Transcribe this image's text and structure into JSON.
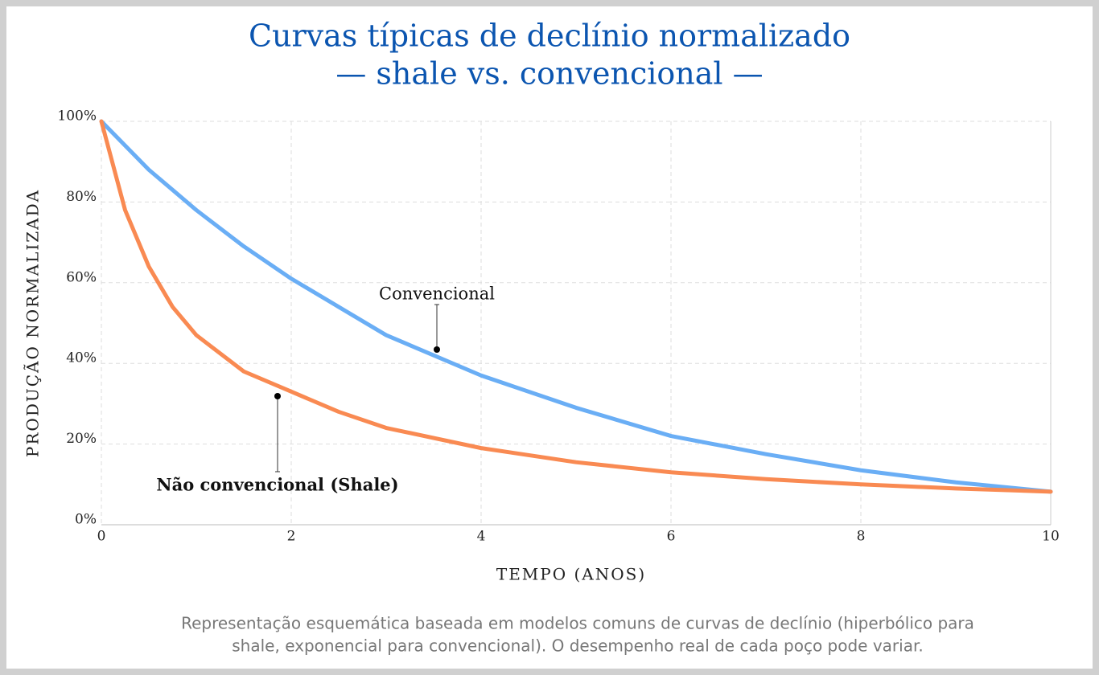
{
  "chart_data": {
    "type": "line",
    "title": [
      "Curvas típicas de declínio normalizado",
      "— shale vs. convencional —"
    ],
    "x": [
      0,
      0.25,
      0.5,
      0.75,
      1,
      1.5,
      2,
      2.5,
      3,
      4,
      5,
      6,
      7,
      8,
      9,
      10
    ],
    "series": [
      {
        "name": "Convencional",
        "color": "#6aaef5",
        "values": [
          100,
          94,
          88,
          83,
          78,
          69,
          61,
          54,
          47,
          37,
          29,
          22,
          17.5,
          13.5,
          10.5,
          8.2
        ]
      },
      {
        "name": "Não convencional (Shale)",
        "color": "#f98a52",
        "values": [
          100,
          78,
          64,
          54,
          47,
          38,
          33,
          28,
          24,
          19,
          15.5,
          13,
          11.3,
          10,
          9,
          8.2
        ]
      }
    ],
    "xlim": [
      0,
      10
    ],
    "xticks": [
      0,
      2,
      4,
      6,
      8,
      10
    ],
    "ylim": [
      0,
      100
    ],
    "yticks": [
      {
        "value": 0,
        "label": "0%"
      },
      {
        "value": 20,
        "label": "20%"
      },
      {
        "value": 40,
        "label": "40%"
      },
      {
        "value": 60,
        "label": "60%"
      },
      {
        "value": 80,
        "label": "80%"
      },
      {
        "value": 100,
        "label": "100%"
      }
    ],
    "xlabel": "TEMPO (ANOS)",
    "ylabel": "PRODUÇÃO NORMALIZADA",
    "grid": true,
    "footnote": [
      "Representação esquemática baseada em modelos comuns de curvas de declínio (hiperbólico para",
      "shale, exponencial para convencional). O desempenho real de cada poço pode variar."
    ]
  }
}
